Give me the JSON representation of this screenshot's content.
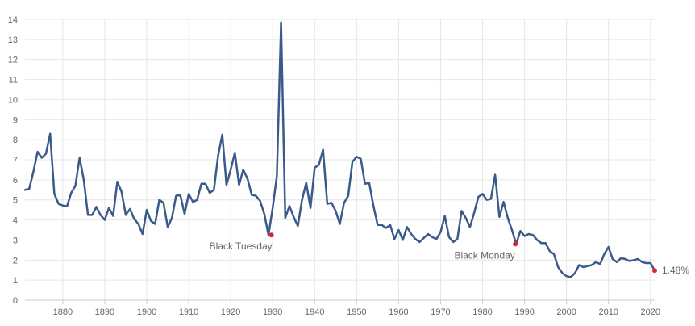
{
  "chart_data": {
    "type": "line",
    "title": "",
    "xlabel": "",
    "ylabel": "",
    "xlim": [
      1871,
      2021
    ],
    "ylim": [
      0,
      14
    ],
    "grid": true,
    "x_ticks": [
      "1880",
      "1890",
      "1900",
      "1910",
      "1920",
      "1930",
      "1940",
      "1950",
      "1960",
      "1970",
      "1980",
      "1990",
      "2000",
      "2010",
      "2020"
    ],
    "y_ticks": [
      "0",
      "1",
      "2",
      "3",
      "4",
      "5",
      "6",
      "7",
      "8",
      "9",
      "10",
      "11",
      "12",
      "13",
      "14"
    ],
    "colors": {
      "line": "#3b5a8c",
      "marker": "#d9262b"
    },
    "series": [
      {
        "x": [
          1871,
          1872,
          1873,
          1874,
          1875,
          1876,
          1877,
          1878,
          1879,
          1880,
          1881,
          1882,
          1883,
          1884,
          1885,
          1886,
          1887,
          1888,
          1889,
          1890,
          1891,
          1892,
          1893,
          1894,
          1895,
          1896,
          1897,
          1898,
          1899,
          1900,
          1901,
          1902,
          1903,
          1904,
          1905,
          1906,
          1907,
          1908,
          1909,
          1910,
          1911,
          1912,
          1913,
          1914,
          1915,
          1916,
          1917,
          1918,
          1919,
          1920,
          1921,
          1922,
          1923,
          1924,
          1925,
          1926,
          1927,
          1928,
          1929,
          1930,
          1931,
          1932,
          1933,
          1934,
          1935,
          1936,
          1937,
          1938,
          1939,
          1940,
          1941,
          1942,
          1943,
          1944,
          1945,
          1946,
          1947,
          1948,
          1949,
          1950,
          1951,
          1952,
          1953,
          1954,
          1955,
          1956,
          1957,
          1958,
          1959,
          1960,
          1961,
          1962,
          1963,
          1964,
          1965,
          1966,
          1967,
          1968,
          1969,
          1970,
          1971,
          1972,
          1973,
          1974,
          1975,
          1976,
          1977,
          1978,
          1979,
          1980,
          1981,
          1982,
          1983,
          1984,
          1985,
          1986,
          1987,
          1988,
          1989,
          1990,
          1991,
          1992,
          1993,
          1994,
          1995,
          1996,
          1997,
          1998,
          1999,
          2000,
          2001,
          2002,
          2003,
          2004,
          2005,
          2006,
          2007,
          2008,
          2009,
          2010,
          2011,
          2012,
          2013,
          2014,
          2015,
          2016,
          2017,
          2018,
          2019,
          2020,
          2021
        ],
        "values": [
          5.5,
          5.55,
          6.4,
          7.4,
          7.1,
          7.3,
          8.3,
          5.3,
          4.8,
          4.72,
          4.68,
          5.35,
          5.7,
          7.1,
          6.0,
          4.25,
          4.25,
          4.65,
          4.25,
          4.0,
          4.6,
          4.2,
          5.9,
          5.4,
          4.25,
          4.55,
          4.05,
          3.8,
          3.3,
          4.5,
          3.95,
          3.8,
          5.0,
          4.85,
          3.65,
          4.1,
          5.2,
          5.25,
          4.3,
          5.3,
          4.9,
          5.0,
          5.8,
          5.8,
          5.35,
          5.5,
          7.2,
          8.25,
          5.75,
          6.5,
          7.35,
          5.75,
          6.5,
          6.05,
          5.25,
          5.2,
          4.95,
          4.3,
          3.25,
          4.6,
          6.2,
          13.85,
          4.1,
          4.7,
          4.15,
          3.7,
          5.0,
          5.85,
          4.6,
          6.6,
          6.75,
          7.5,
          4.8,
          4.85,
          4.45,
          3.8,
          4.85,
          5.2,
          6.9,
          7.15,
          7.05,
          5.8,
          5.85,
          4.7,
          3.75,
          3.75,
          3.6,
          3.75,
          3.05,
          3.5,
          3.0,
          3.65,
          3.3,
          3.05,
          2.9,
          3.1,
          3.3,
          3.15,
          3.05,
          3.4,
          4.2,
          3.15,
          2.9,
          3.05,
          4.45,
          4.1,
          3.65,
          4.35,
          5.15,
          5.3,
          5.0,
          5.05,
          6.25,
          4.15,
          4.9,
          4.1,
          3.5,
          2.8,
          3.45,
          3.2,
          3.3,
          3.25,
          3.0,
          2.85,
          2.85,
          2.45,
          2.3,
          1.65,
          1.35,
          1.2,
          1.15,
          1.35,
          1.75,
          1.65,
          1.7,
          1.75,
          1.9,
          1.8,
          2.3,
          2.65,
          2.05,
          1.9,
          2.1,
          2.05,
          1.95,
          2.0,
          2.05,
          1.9,
          1.85,
          1.85,
          1.48
        ]
      }
    ],
    "annotations": [
      {
        "x": 1929.7,
        "y": 3.25,
        "label": "Black Tuesday"
      },
      {
        "x": 1987.8,
        "y": 2.8,
        "label": "Black Monday"
      },
      {
        "x": 2021,
        "y": 1.48,
        "label": "1.48%"
      }
    ]
  }
}
